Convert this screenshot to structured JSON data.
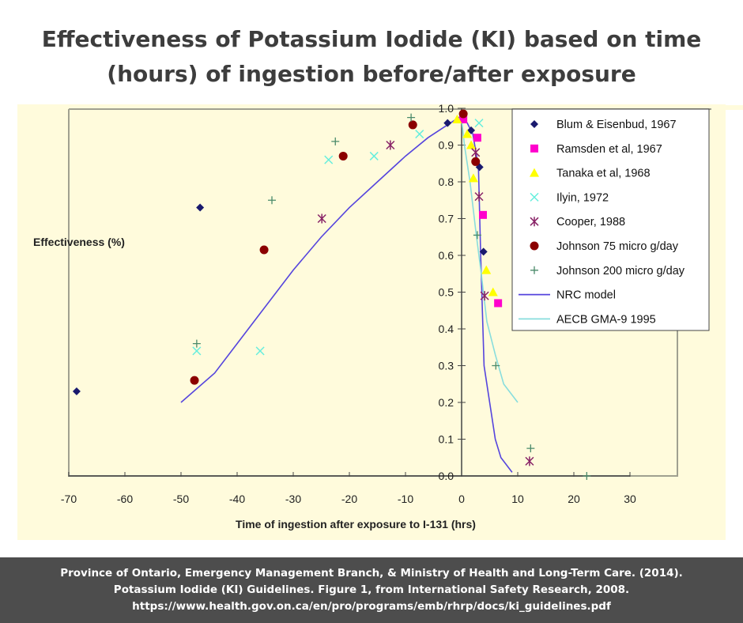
{
  "title_line1": "Effectiveness of Potassium Iodide (KI) based on time",
  "title_line2": "(hours) of ingestion before/after exposure",
  "footer": {
    "line1": "Province of Ontario, Emergency Management Branch, & Ministry of Health and Long-Term Care. (2014).",
    "line2": "Potassium Iodide (KI) Guidelines.  Figure 1, from International Safety Research, 2008.",
    "line3": "https://www.health.gov.on.ca/en/pro/programs/emb/rhrp/docs/ki_guidelines.pdf"
  },
  "chart_data": {
    "type": "scatter",
    "xlabel": "Time of ingestion after exposure to I-131 (hrs)",
    "ylabel": "Effectiveness (%)",
    "xlim": [
      -70,
      30
    ],
    "ylim": [
      0,
      1
    ],
    "xticks": [
      "-70",
      "-60",
      "-50",
      "-40",
      "-30",
      "-20",
      "-10",
      "0",
      "10",
      "20",
      "30"
    ],
    "yticks": [
      "0.0",
      "0.1",
      "0.2",
      "0.3",
      "0.4",
      "0.5",
      "0.6",
      "0.7",
      "0.8",
      "0.9",
      "1.0"
    ],
    "legend_position": "top-right",
    "background": "#fffbdc",
    "series": [
      {
        "name": "Blum & Eisenbud, 1967",
        "marker": "diamond",
        "color": "#1a1a6e",
        "points": [
          [
            -68.6,
            0.23
          ],
          [
            -46.6,
            0.73
          ],
          [
            -2.5,
            0.96
          ],
          [
            1.7,
            0.94
          ],
          [
            3.2,
            0.84
          ],
          [
            3.9,
            0.61
          ]
        ]
      },
      {
        "name": "Ramsden et al, 1967",
        "marker": "square",
        "color": "#ff00cc",
        "points": [
          [
            0.3,
            0.97
          ],
          [
            2.8,
            0.92
          ],
          [
            3.8,
            0.71
          ],
          [
            6.5,
            0.47
          ]
        ]
      },
      {
        "name": "Tanaka et al, 1968",
        "marker": "triangle",
        "color": "#ffff00",
        "points": [
          [
            -0.8,
            0.97
          ],
          [
            1.0,
            0.93
          ],
          [
            1.7,
            0.9
          ],
          [
            2.1,
            0.81
          ],
          [
            4.4,
            0.56
          ],
          [
            5.6,
            0.5
          ]
        ]
      },
      {
        "name": "Ilyin, 1972",
        "marker": "x",
        "color": "#66eedd",
        "points": [
          [
            -47.2,
            0.34
          ],
          [
            -35.9,
            0.34
          ],
          [
            -23.7,
            0.86
          ],
          [
            -15.6,
            0.87
          ],
          [
            -7.5,
            0.93
          ],
          [
            3.1,
            0.96
          ]
        ]
      },
      {
        "name": "Cooper, 1988",
        "marker": "star",
        "color": "#882266",
        "points": [
          [
            -24.9,
            0.7
          ],
          [
            -12.7,
            0.9
          ],
          [
            2.5,
            0.88
          ],
          [
            3.1,
            0.76
          ],
          [
            4.1,
            0.49
          ],
          [
            12.1,
            0.04
          ]
        ]
      },
      {
        "name": "Johnson 75 micro g/day",
        "marker": "circle",
        "color": "#8b0000",
        "points": [
          [
            -47.6,
            0.26
          ],
          [
            -35.2,
            0.615
          ],
          [
            -21.1,
            0.87
          ],
          [
            -8.7,
            0.955
          ],
          [
            0.3,
            0.985
          ],
          [
            2.5,
            0.855
          ]
        ]
      },
      {
        "name": "Johnson 200 micro g/day",
        "marker": "plus",
        "color": "#4a8a6a",
        "points": [
          [
            -47.2,
            0.36
          ],
          [
            -33.8,
            0.75
          ],
          [
            -22.5,
            0.91
          ],
          [
            -9,
            0.975
          ],
          [
            2.8,
            0.655
          ],
          [
            6.1,
            0.3
          ],
          [
            12.3,
            0.075
          ],
          [
            22.3,
            0.0
          ]
        ]
      },
      {
        "name": "NRC model",
        "marker": "line",
        "color": "#5544dd",
        "points": [
          [
            -50,
            0.2
          ],
          [
            -44,
            0.28
          ],
          [
            -40,
            0.36
          ],
          [
            -36,
            0.44
          ],
          [
            -30,
            0.56
          ],
          [
            -25,
            0.65
          ],
          [
            -20,
            0.73
          ],
          [
            -15,
            0.8
          ],
          [
            -10,
            0.87
          ],
          [
            -6,
            0.92
          ],
          [
            -2,
            0.96
          ],
          [
            0,
            0.98
          ],
          [
            1,
            0.96
          ],
          [
            2,
            0.93
          ],
          [
            3,
            0.84
          ],
          [
            3.4,
            0.6
          ],
          [
            3.7,
            0.45
          ],
          [
            4,
            0.3
          ],
          [
            5,
            0.2
          ],
          [
            6,
            0.1
          ],
          [
            7,
            0.05
          ],
          [
            9,
            0.01
          ]
        ]
      },
      {
        "name": "AECB GMA-9 1995",
        "marker": "line",
        "color": "#88dddd",
        "points": [
          [
            0,
            0.97
          ],
          [
            0.5,
            0.9
          ],
          [
            1.5,
            0.8
          ],
          [
            2.5,
            0.67
          ],
          [
            3.5,
            0.55
          ],
          [
            4.5,
            0.42
          ],
          [
            6,
            0.33
          ],
          [
            7.5,
            0.25
          ],
          [
            10,
            0.2
          ]
        ]
      }
    ]
  }
}
